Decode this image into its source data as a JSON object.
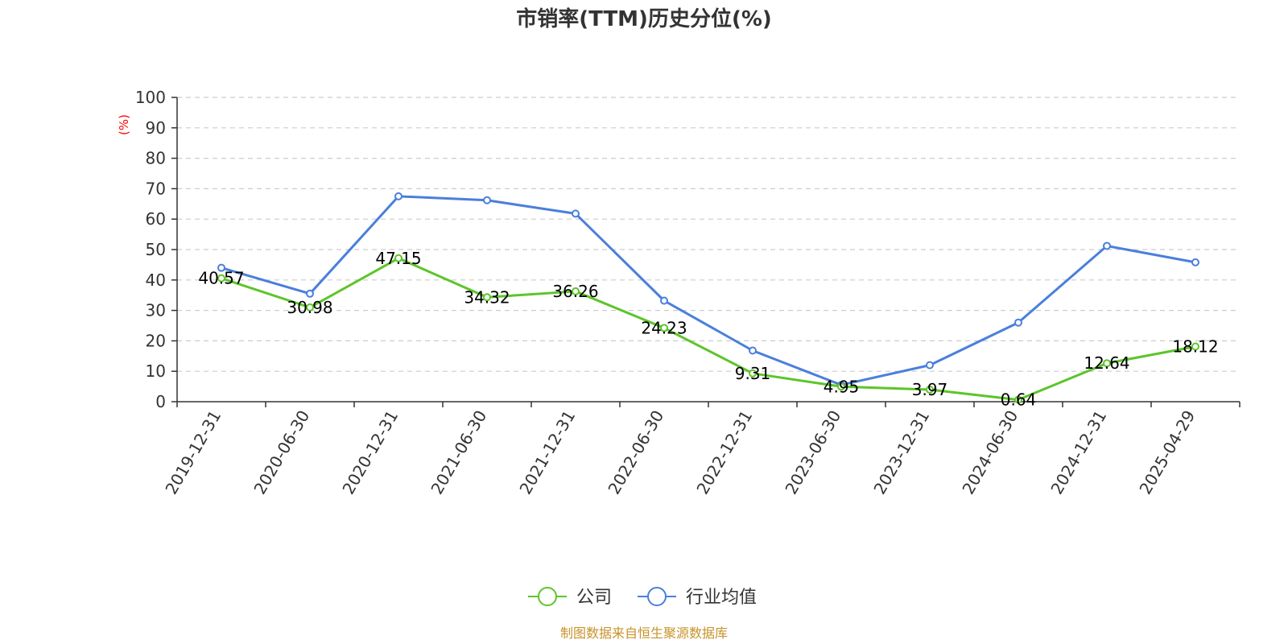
{
  "chart_data": {
    "type": "line",
    "title": "市销率(TTM)历史分位(%)",
    "ylabel": "(%)",
    "xlabel": "",
    "ylim": [
      0,
      100
    ],
    "yticks": [
      0,
      10,
      20,
      30,
      40,
      50,
      60,
      70,
      80,
      90,
      100
    ],
    "grid": true,
    "legend_position": "bottom-center",
    "categories": [
      "2019-12-31",
      "2020-06-30",
      "2020-12-31",
      "2021-06-30",
      "2021-12-31",
      "2022-06-30",
      "2022-12-31",
      "2023-06-30",
      "2023-12-31",
      "2024-06-30",
      "2024-12-31",
      "2025-04-29"
    ],
    "series": [
      {
        "name": "公司",
        "color": "#5cc52a",
        "values": [
          40.57,
          30.98,
          47.15,
          34.32,
          36.26,
          24.23,
          9.31,
          4.95,
          3.97,
          0.64,
          12.64,
          18.12
        ],
        "show_labels": true
      },
      {
        "name": "行业均值",
        "color": "#4a7fdc",
        "values": [
          44.0,
          35.5,
          67.5,
          66.2,
          61.8,
          33.2,
          16.8,
          5.5,
          12.0,
          26.0,
          51.2,
          45.8
        ],
        "show_labels": false
      }
    ],
    "ylabel_color": "#ff0000"
  },
  "footer": {
    "source": "制图数据来自恒生聚源数据库",
    "source_color": "#c8922a"
  }
}
